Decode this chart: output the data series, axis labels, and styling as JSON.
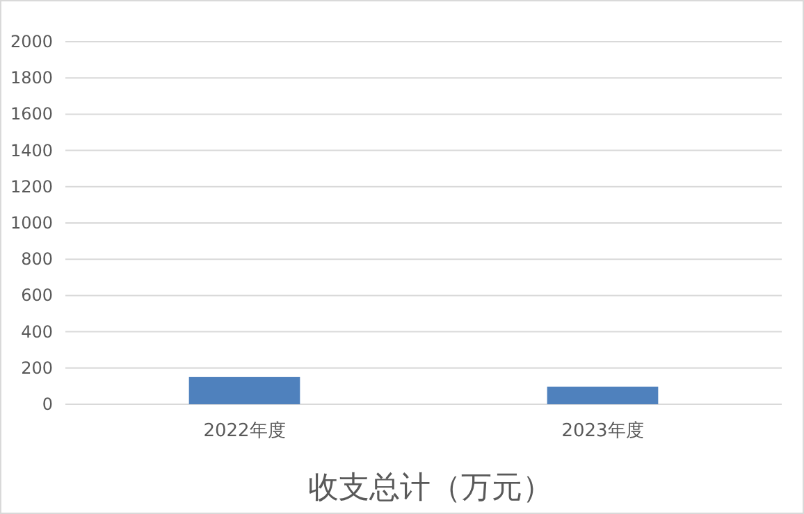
{
  "chart_data": {
    "type": "bar",
    "title": "收支总计（万元）",
    "categories": [
      "2022年度",
      "2023年度"
    ],
    "values": [
      150,
      97
    ],
    "color": "#4f81bd",
    "ylim": [
      0,
      2000
    ],
    "yticks": [
      0,
      200,
      400,
      600,
      800,
      1000,
      1200,
      1400,
      1600,
      1800,
      2000
    ],
    "grid": "y"
  }
}
